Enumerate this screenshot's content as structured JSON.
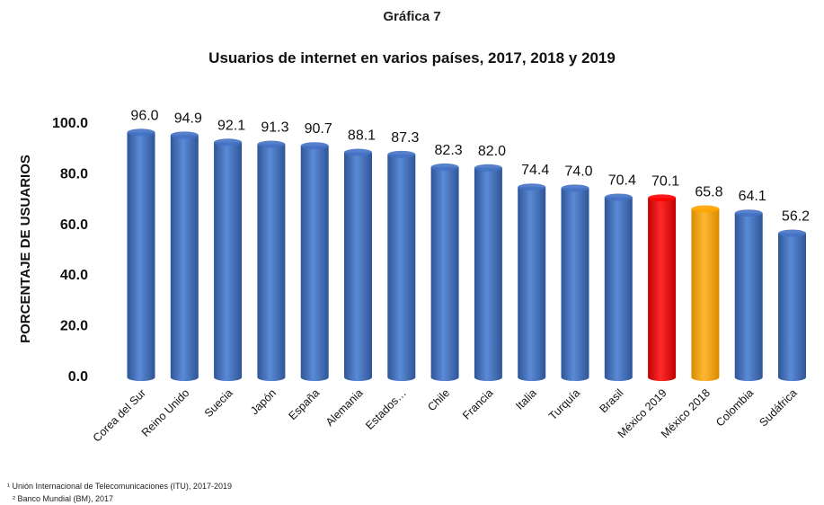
{
  "figure_label": "Gráfica 7",
  "chart_data": {
    "type": "bar",
    "title": "Usuarios de  internet en varios países, 2017, 2018 y 2019",
    "ylabel": "PORCENTAJE DE USUARIOS",
    "xlabel": "",
    "ylim": [
      0,
      100
    ],
    "yticks": [
      "0.0",
      "20.0",
      "40.0",
      "60.0",
      "80.0",
      "100.0"
    ],
    "yticks_values": [
      0,
      20,
      40,
      60,
      80,
      100
    ],
    "grid": false,
    "categories": [
      "Corea del Sur",
      "Reino Unido",
      "Suecia",
      "Japón",
      "España",
      "Alemania",
      "Estados…",
      "Chile",
      "Francia",
      "Italia",
      "Turquía",
      "Brasil",
      "México 2019",
      "México 2018",
      "Colombia",
      "Sudáfrica"
    ],
    "values": [
      96.0,
      94.9,
      92.1,
      91.3,
      90.7,
      88.1,
      87.3,
      82.3,
      82.0,
      74.4,
      74.0,
      70.4,
      70.1,
      65.8,
      64.1,
      56.2
    ],
    "value_labels": [
      "96.0",
      "94.9",
      "92.1",
      "91.3",
      "90.7",
      "88.1",
      "87.3",
      "82.3",
      "82.0",
      "74.4",
      "74.0",
      "70.4",
      "70.1",
      "65.8",
      "64.1",
      "56.2"
    ],
    "colors": {
      "default": "#4472c4",
      "México 2019": "#ff0000",
      "México 2018": "#ffa500"
    }
  },
  "footnotes": [
    "¹ Unión Internacional de Telecomunicaciones (ITU), 2017-2019",
    "² Banco Mundial (BM), 2017"
  ]
}
